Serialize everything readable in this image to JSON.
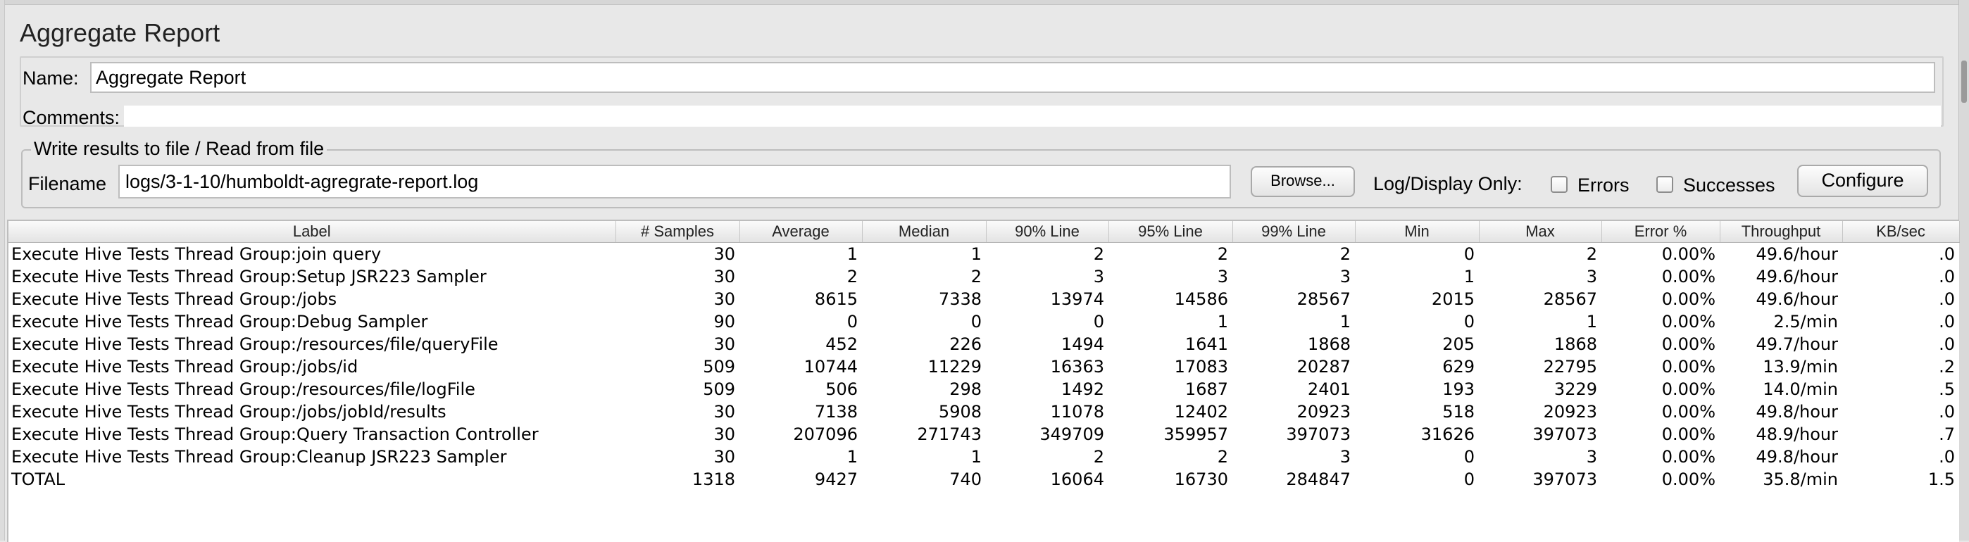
{
  "title": "Aggregate Report",
  "name_label": "Name:",
  "name_value": "Aggregate Report",
  "comments_label": "Comments:",
  "file_group_label": "Write results to file / Read from file",
  "filename_label": "Filename",
  "filename_value": "logs/3-1-10/humboldt-agregrate-report.log",
  "browse_label": "Browse...",
  "log_display_label": "Log/Display Only:",
  "errors_label": "Errors",
  "successes_label": "Successes",
  "configure_label": "Configure",
  "table": {
    "columns": [
      "Label",
      "# Samples",
      "Average",
      "Median",
      "90% Line",
      "95% Line",
      "99% Line",
      "Min",
      "Max",
      "Error %",
      "Throughput",
      "KB/sec"
    ],
    "rows": [
      [
        "Execute Hive Tests Thread Group:join query",
        "30",
        "1",
        "1",
        "2",
        "2",
        "2",
        "0",
        "2",
        "0.00%",
        "49.6/hour",
        ".0"
      ],
      [
        "Execute Hive Tests Thread Group:Setup JSR223 Sampler",
        "30",
        "2",
        "2",
        "3",
        "3",
        "3",
        "1",
        "3",
        "0.00%",
        "49.6/hour",
        ".0"
      ],
      [
        "Execute Hive Tests Thread Group:/jobs",
        "30",
        "8615",
        "7338",
        "13974",
        "14586",
        "28567",
        "2015",
        "28567",
        "0.00%",
        "49.6/hour",
        ".0"
      ],
      [
        "Execute Hive Tests Thread Group:Debug Sampler",
        "90",
        "0",
        "0",
        "0",
        "1",
        "1",
        "0",
        "1",
        "0.00%",
        "2.5/min",
        ".0"
      ],
      [
        "Execute Hive Tests Thread Group:/resources/file/queryFile",
        "30",
        "452",
        "226",
        "1494",
        "1641",
        "1868",
        "205",
        "1868",
        "0.00%",
        "49.7/hour",
        ".0"
      ],
      [
        "Execute Hive Tests Thread Group:/jobs/id",
        "509",
        "10744",
        "11229",
        "16363",
        "17083",
        "20287",
        "629",
        "22795",
        "0.00%",
        "13.9/min",
        ".2"
      ],
      [
        "Execute Hive Tests Thread Group:/resources/file/logFile",
        "509",
        "506",
        "298",
        "1492",
        "1687",
        "2401",
        "193",
        "3229",
        "0.00%",
        "14.0/min",
        ".5"
      ],
      [
        "Execute Hive Tests Thread Group:/jobs/jobId/results",
        "30",
        "7138",
        "5908",
        "11078",
        "12402",
        "20923",
        "518",
        "20923",
        "0.00%",
        "49.8/hour",
        ".0"
      ],
      [
        "Execute Hive Tests Thread Group:Query Transaction Controller",
        "30",
        "207096",
        "271743",
        "349709",
        "359957",
        "397073",
        "31626",
        "397073",
        "0.00%",
        "48.9/hour",
        ".7"
      ],
      [
        "Execute Hive Tests Thread Group:Cleanup JSR223 Sampler",
        "30",
        "1",
        "1",
        "2",
        "2",
        "3",
        "0",
        "3",
        "0.00%",
        "49.8/hour",
        ".0"
      ],
      [
        "TOTAL",
        "1318",
        "9427",
        "740",
        "16064",
        "16730",
        "284847",
        "0",
        "397073",
        "0.00%",
        "35.8/min",
        "1.5"
      ]
    ]
  }
}
